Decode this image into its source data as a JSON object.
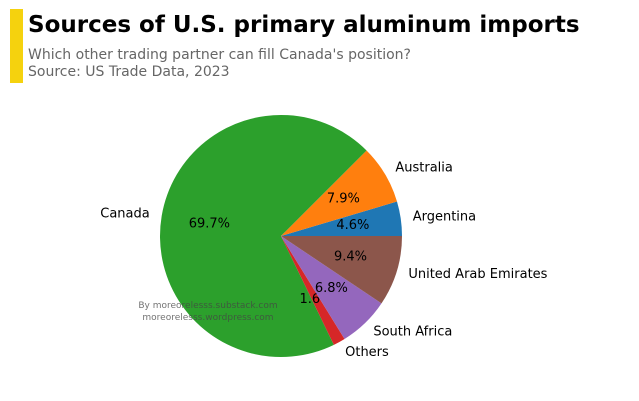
{
  "header": {
    "title": "Sources of U.S. primary aluminum imports",
    "subtitle_line1": "Which other trading partner can fill Canada's position?",
    "subtitle_line2": "Source: US Trade Data, 2023",
    "accent_color": "#f5d20e"
  },
  "watermark": {
    "line1": "By moreorelesss.substack.com",
    "line2": "moreorelesss.wordpress.com"
  },
  "chart_data": {
    "type": "pie",
    "title": "Sources of U.S. primary aluminum imports",
    "start_angle_deg": 0,
    "direction": "counterclockwise",
    "slices": [
      {
        "label": "Argentina",
        "value": 4.6,
        "display": "4.6%",
        "color": "#1f77b4"
      },
      {
        "label": "Australia",
        "value": 7.9,
        "display": "7.9%",
        "color": "#ff7f0e"
      },
      {
        "label": "Canada",
        "value": 69.7,
        "display": "69.7%",
        "color": "#2ca02c"
      },
      {
        "label": "Others",
        "value": 1.6,
        "display": "1.6%",
        "color": "#d62728"
      },
      {
        "label": "South Africa",
        "value": 6.8,
        "display": "6.8%",
        "color": "#9467bd"
      },
      {
        "label": "United Arab Emirates",
        "value": 9.4,
        "display": "9.4%",
        "color": "#8c564b"
      }
    ]
  }
}
